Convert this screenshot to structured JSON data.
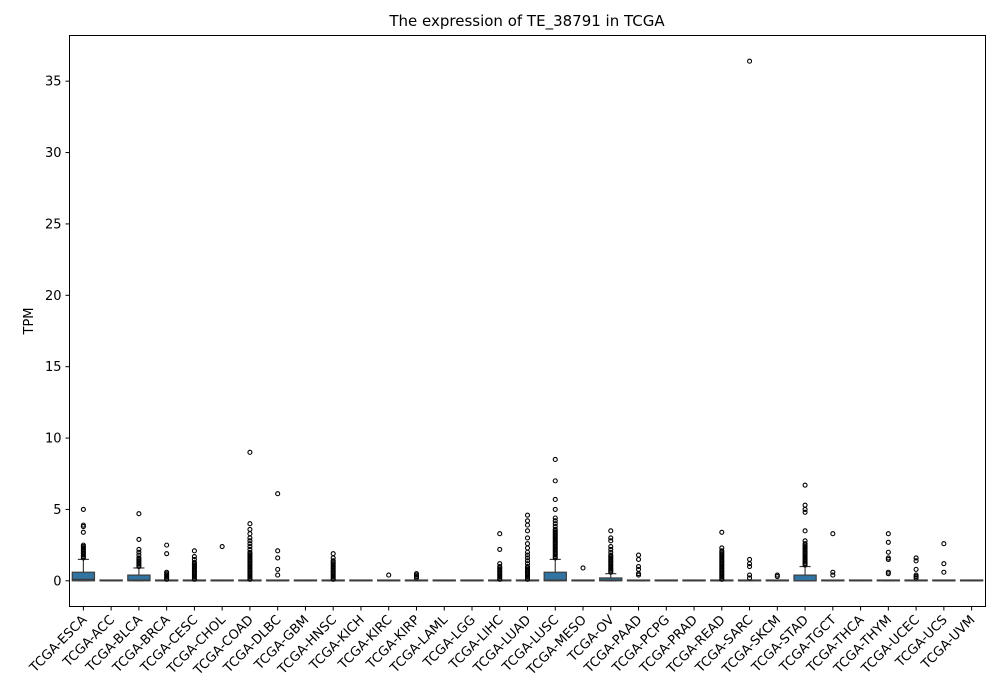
{
  "chart_data": {
    "type": "box",
    "title": "The expression of TE_38791 in TCGA",
    "xlabel": "",
    "ylabel": "TPM",
    "ylim": [
      -1.8,
      38.2
    ],
    "yticks": [
      0,
      5,
      10,
      15,
      20,
      25,
      30,
      35
    ],
    "grid": false,
    "box_color": "#3274a1",
    "categories": [
      "TCGA-ESCA",
      "TCGA-ACC",
      "TCGA-BLCA",
      "TCGA-BRCA",
      "TCGA-CESC",
      "TCGA-CHOL",
      "TCGA-COAD",
      "TCGA-DLBC",
      "TCGA-GBM",
      "TCGA-HNSC",
      "TCGA-KICH",
      "TCGA-KIRC",
      "TCGA-KIRP",
      "TCGA-LAML",
      "TCGA-LGG",
      "TCGA-LIHC",
      "TCGA-LUAD",
      "TCGA-LUSC",
      "TCGA-MESO",
      "TCGA-OV",
      "TCGA-PAAD",
      "TCGA-PCPG",
      "TCGA-PRAD",
      "TCGA-READ",
      "TCGA-SARC",
      "TCGA-SKCM",
      "TCGA-STAD",
      "TCGA-TGCT",
      "TCGA-THCA",
      "TCGA-THYM",
      "TCGA-UCEC",
      "TCGA-UCS",
      "TCGA-UVM"
    ],
    "boxes": [
      {
        "q1": 0,
        "median": 0.1,
        "q3": 0.6,
        "whislo": 0,
        "whishi": 1.5,
        "fliers": [
          1.6,
          1.7,
          1.8,
          1.9,
          2.0,
          2.1,
          2.2,
          2.3,
          2.4,
          2.5,
          3.4,
          3.8,
          3.9,
          5.0
        ]
      },
      {
        "q1": 0,
        "median": 0,
        "q3": 0,
        "whislo": 0,
        "whishi": 0,
        "fliers": []
      },
      {
        "q1": 0,
        "median": 0.05,
        "q3": 0.4,
        "whislo": 0,
        "whishi": 0.9,
        "fliers": [
          1.0,
          1.1,
          1.2,
          1.3,
          1.4,
          1.5,
          1.6,
          1.8,
          2.0,
          2.2,
          2.9,
          4.7
        ]
      },
      {
        "q1": 0,
        "median": 0,
        "q3": 0,
        "whislo": 0,
        "whishi": 0,
        "fliers": [
          0.1,
          0.2,
          0.3,
          0.4,
          0.5,
          0.6,
          1.9,
          2.5
        ]
      },
      {
        "q1": 0,
        "median": 0,
        "q3": 0,
        "whislo": 0,
        "whishi": 0,
        "fliers": [
          0.1,
          0.2,
          0.3,
          0.4,
          0.5,
          0.6,
          0.7,
          0.8,
          0.9,
          1.0,
          1.1,
          1.2,
          1.3,
          1.5,
          1.7,
          2.1
        ]
      },
      {
        "q1": 0,
        "median": 0,
        "q3": 0,
        "whislo": 0,
        "whishi": 0,
        "fliers": [
          2.4
        ]
      },
      {
        "q1": 0,
        "median": 0,
        "q3": 0,
        "whislo": 0,
        "whishi": 0,
        "fliers": [
          0.1,
          0.2,
          0.3,
          0.4,
          0.5,
          0.6,
          0.7,
          0.8,
          0.9,
          1.0,
          1.1,
          1.2,
          1.3,
          1.4,
          1.5,
          1.6,
          1.7,
          1.8,
          1.9,
          2.0,
          2.2,
          2.4,
          2.6,
          2.8,
          3.0,
          3.3,
          3.6,
          4.0,
          9.0
        ]
      },
      {
        "q1": 0,
        "median": 0,
        "q3": 0,
        "whislo": 0,
        "whishi": 0,
        "fliers": [
          0.4,
          0.8,
          1.6,
          2.1,
          6.1
        ]
      },
      {
        "q1": 0,
        "median": 0,
        "q3": 0,
        "whislo": 0,
        "whishi": 0,
        "fliers": []
      },
      {
        "q1": 0,
        "median": 0,
        "q3": 0,
        "whislo": 0,
        "whishi": 0,
        "fliers": [
          0.1,
          0.2,
          0.3,
          0.4,
          0.5,
          0.6,
          0.7,
          0.8,
          0.9,
          1.0,
          1.1,
          1.2,
          1.3,
          1.4,
          1.6,
          1.9
        ]
      },
      {
        "q1": 0,
        "median": 0,
        "q3": 0,
        "whislo": 0,
        "whishi": 0,
        "fliers": []
      },
      {
        "q1": 0,
        "median": 0,
        "q3": 0,
        "whislo": 0,
        "whishi": 0,
        "fliers": [
          0.4
        ]
      },
      {
        "q1": 0,
        "median": 0,
        "q3": 0,
        "whislo": 0,
        "whishi": 0,
        "fliers": [
          0.2,
          0.3,
          0.4,
          0.5
        ]
      },
      {
        "q1": 0,
        "median": 0,
        "q3": 0,
        "whislo": 0,
        "whishi": 0,
        "fliers": []
      },
      {
        "q1": 0,
        "median": 0,
        "q3": 0,
        "whislo": 0,
        "whishi": 0,
        "fliers": []
      },
      {
        "q1": 0,
        "median": 0,
        "q3": 0,
        "whislo": 0,
        "whishi": 0,
        "fliers": [
          0.1,
          0.2,
          0.3,
          0.4,
          0.5,
          0.6,
          0.7,
          0.8,
          0.9,
          1.0,
          1.2,
          2.2,
          3.3
        ]
      },
      {
        "q1": 0,
        "median": 0,
        "q3": 0,
        "whislo": 0,
        "whishi": 0,
        "fliers": [
          0.1,
          0.2,
          0.3,
          0.4,
          0.5,
          0.6,
          0.7,
          0.8,
          0.9,
          1.0,
          1.2,
          1.4,
          1.6,
          1.8,
          2.0,
          2.3,
          2.6,
          3.0,
          3.5,
          3.9,
          4.2,
          4.6
        ]
      },
      {
        "q1": 0,
        "median": 0.05,
        "q3": 0.6,
        "whislo": 0,
        "whishi": 1.5,
        "fliers": [
          1.6,
          1.7,
          1.8,
          1.9,
          2.0,
          2.1,
          2.2,
          2.3,
          2.4,
          2.5,
          2.6,
          2.7,
          2.8,
          2.9,
          3.0,
          3.1,
          3.2,
          3.3,
          3.4,
          3.5,
          3.6,
          3.8,
          4.0,
          4.2,
          4.4,
          5.0,
          5.7,
          7.0,
          8.5
        ]
      },
      {
        "q1": 0,
        "median": 0,
        "q3": 0,
        "whislo": 0,
        "whishi": 0,
        "fliers": [
          0.9
        ]
      },
      {
        "q1": 0,
        "median": 0.05,
        "q3": 0.2,
        "whislo": 0,
        "whishi": 0.5,
        "fliers": [
          0.6,
          0.7,
          0.8,
          0.9,
          1.0,
          1.1,
          1.2,
          1.3,
          1.4,
          1.5,
          1.6,
          1.7,
          1.8,
          2.0,
          2.2,
          2.4,
          2.8,
          3.0,
          3.5
        ]
      },
      {
        "q1": 0,
        "median": 0,
        "q3": 0,
        "whislo": 0,
        "whishi": 0,
        "fliers": [
          0.4,
          0.5,
          0.8,
          1.0,
          1.5,
          1.8
        ]
      },
      {
        "q1": 0,
        "median": 0,
        "q3": 0,
        "whislo": 0,
        "whishi": 0,
        "fliers": []
      },
      {
        "q1": 0,
        "median": 0,
        "q3": 0,
        "whislo": 0,
        "whishi": 0,
        "fliers": []
      },
      {
        "q1": 0,
        "median": 0,
        "q3": 0,
        "whislo": 0,
        "whishi": 0,
        "fliers": [
          0.1,
          0.2,
          0.3,
          0.4,
          0.5,
          0.6,
          0.7,
          0.8,
          0.9,
          1.0,
          1.1,
          1.2,
          1.3,
          1.4,
          1.5,
          1.6,
          1.7,
          1.8,
          1.9,
          2.0,
          2.1,
          2.3,
          3.4
        ]
      },
      {
        "q1": 0,
        "median": 0,
        "q3": 0,
        "whislo": 0,
        "whishi": 0,
        "fliers": [
          0.2,
          0.4,
          1.0,
          1.2,
          1.5,
          36.4
        ]
      },
      {
        "q1": 0,
        "median": 0,
        "q3": 0,
        "whislo": 0,
        "whishi": 0,
        "fliers": [
          0.3,
          0.4
        ]
      },
      {
        "q1": 0,
        "median": 0,
        "q3": 0.4,
        "whislo": 0,
        "whishi": 1.0,
        "fliers": [
          1.1,
          1.2,
          1.3,
          1.4,
          1.5,
          1.6,
          1.7,
          1.8,
          1.9,
          2.0,
          2.1,
          2.2,
          2.3,
          2.4,
          2.5,
          2.6,
          2.8,
          3.5,
          4.8,
          5.0,
          5.3,
          6.7
        ]
      },
      {
        "q1": 0,
        "median": 0,
        "q3": 0,
        "whislo": 0,
        "whishi": 0,
        "fliers": [
          0.4,
          0.6,
          3.3
        ]
      },
      {
        "q1": 0,
        "median": 0,
        "q3": 0,
        "whislo": 0,
        "whishi": 0,
        "fliers": []
      },
      {
        "q1": 0,
        "median": 0,
        "q3": 0,
        "whislo": 0,
        "whishi": 0,
        "fliers": [
          0.5,
          0.6,
          1.5,
          1.6,
          2.0,
          2.7,
          3.3
        ]
      },
      {
        "q1": 0,
        "median": 0,
        "q3": 0,
        "whislo": 0,
        "whishi": 0,
        "fliers": [
          0.2,
          0.3,
          0.4,
          0.8,
          1.4,
          1.6
        ]
      },
      {
        "q1": 0,
        "median": 0,
        "q3": 0,
        "whislo": 0,
        "whishi": 0,
        "fliers": [
          0.6,
          1.2,
          2.6
        ]
      },
      {
        "q1": 0,
        "median": 0,
        "q3": 0,
        "whislo": 0,
        "whishi": 0,
        "fliers": []
      }
    ]
  }
}
